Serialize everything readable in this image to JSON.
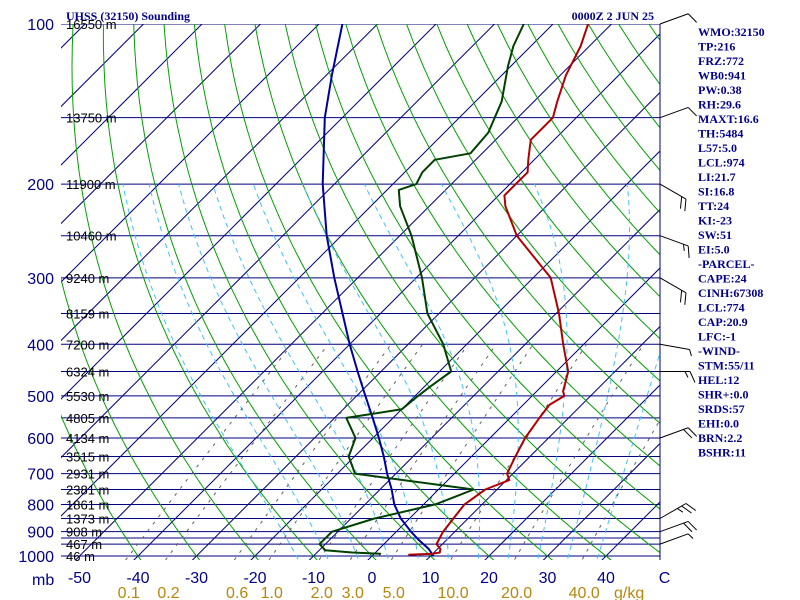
{
  "chart_data": {
    "type": "skew-t",
    "title_left": "UHSS (32150) Sounding",
    "title_right": "0000Z  2 JUN 25",
    "pressure_unit": "mb",
    "mixing_ratio_unit": "g/kg",
    "pressure_levels": [
      100,
      200,
      300,
      400,
      500,
      600,
      700,
      800,
      900,
      1000
    ],
    "pressure_ticks": [
      100,
      150,
      200,
      250,
      300,
      350,
      400,
      450,
      500,
      550,
      600,
      650,
      700,
      750,
      800,
      850,
      900,
      925,
      950,
      1000
    ],
    "temperature_ticks": [
      -50,
      -40,
      -30,
      -20,
      -10,
      0,
      10,
      20,
      30,
      40,
      50
    ],
    "temperature_tick_labels": [
      "-50",
      "-40",
      "-30",
      "-20",
      "-10",
      "0",
      "10",
      "20",
      "30",
      "40",
      "C"
    ],
    "mixing_ratio_labels": [
      {
        "label": "0.1",
        "value": 0.1
      },
      {
        "label": "0.2",
        "value": 0.2
      },
      {
        "label": "0.6",
        "value": 0.6
      },
      {
        "label": "1.0",
        "value": 1.0
      },
      {
        "label": "2.0",
        "value": 2.0
      },
      {
        "label": "3.0",
        "value": 3.0
      },
      {
        "label": "5.0",
        "value": 5.0
      },
      {
        "label": "10.0",
        "value": 10.0
      },
      {
        "label": "20.0",
        "value": 20.0
      },
      {
        "label": "40.0",
        "value": 40.0
      }
    ],
    "heights": [
      {
        "p": 100,
        "label": "16550 m"
      },
      {
        "p": 150,
        "label": "13750 m"
      },
      {
        "p": 200,
        "label": "11900 m"
      },
      {
        "p": 250,
        "label": "10460 m"
      },
      {
        "p": 300,
        "label": "9240 m"
      },
      {
        "p": 350,
        "label": "8159 m"
      },
      {
        "p": 400,
        "label": "7200 m"
      },
      {
        "p": 450,
        "label": "6324 m"
      },
      {
        "p": 500,
        "label": "5530 m"
      },
      {
        "p": 550,
        "label": "4805 m"
      },
      {
        "p": 600,
        "label": "4134 m"
      },
      {
        "p": 650,
        "label": "3515 m"
      },
      {
        "p": 700,
        "label": "2931 m"
      },
      {
        "p": 750,
        "label": "2381 m"
      },
      {
        "p": 800,
        "label": "1861 m"
      },
      {
        "p": 850,
        "label": "1373 m"
      },
      {
        "p": 900,
        "label": "908 m"
      },
      {
        "p": 950,
        "label": "467 m"
      },
      {
        "p": 1000,
        "label": "46 m"
      }
    ],
    "temperature_profile": [
      [
        995,
        6.0
      ],
      [
        990,
        10.0
      ],
      [
        985,
        11.0
      ],
      [
        970,
        10.5
      ],
      [
        950,
        9.0
      ],
      [
        900,
        8.0
      ],
      [
        850,
        7.5
      ],
      [
        800,
        7.0
      ],
      [
        750,
        8.0
      ],
      [
        720,
        10.5
      ],
      [
        700,
        9.0
      ],
      [
        650,
        7.5
      ],
      [
        600,
        6.0
      ],
      [
        550,
        5.0
      ],
      [
        520,
        4.5
      ],
      [
        500,
        5.5
      ],
      [
        490,
        4.5
      ],
      [
        450,
        2.0
      ],
      [
        400,
        -3.5
      ],
      [
        350,
        -9.5
      ],
      [
        300,
        -17.0
      ],
      [
        250,
        -30.0
      ],
      [
        220,
        -37.0
      ],
      [
        210,
        -39.0
      ],
      [
        200,
        -39.0
      ],
      [
        190,
        -39.0
      ],
      [
        180,
        -41.0
      ],
      [
        170,
        -43.0
      ],
      [
        165,
        -44.0
      ],
      [
        150,
        -44.0
      ],
      [
        140,
        -46.0
      ],
      [
        125,
        -49.0
      ],
      [
        110,
        -51.5
      ],
      [
        100,
        -54.0
      ]
    ],
    "dewpoint_profile": [
      [
        995,
        1.0
      ],
      [
        990,
        1.0
      ],
      [
        985,
        -4.0
      ],
      [
        975,
        -9.0
      ],
      [
        950,
        -11.0
      ],
      [
        900,
        -11.0
      ],
      [
        850,
        -6.0
      ],
      [
        800,
        2.0
      ],
      [
        775,
        4.0
      ],
      [
        750,
        6.0
      ],
      [
        700,
        -17.0
      ],
      [
        650,
        -21.0
      ],
      [
        600,
        -23.0
      ],
      [
        550,
        -28.0
      ],
      [
        530,
        -20.0
      ],
      [
        500,
        -19.5
      ],
      [
        480,
        -19.0
      ],
      [
        450,
        -18.0
      ],
      [
        400,
        -24.0
      ],
      [
        350,
        -32.0
      ],
      [
        300,
        -39.0
      ],
      [
        250,
        -48.0
      ],
      [
        220,
        -55.0
      ],
      [
        205,
        -58.0
      ],
      [
        200,
        -56.0
      ],
      [
        190,
        -57.0
      ],
      [
        180,
        -57.0
      ],
      [
        175,
        -52.0
      ],
      [
        160,
        -52.5
      ],
      [
        140,
        -55.5
      ],
      [
        120,
        -60.5
      ],
      [
        110,
        -63.0
      ],
      [
        100,
        -65.0
      ]
    ],
    "parcel_profile": [
      [
        1000,
        10.5
      ],
      [
        970,
        8.5
      ],
      [
        930,
        5.0
      ],
      [
        900,
        2.5
      ],
      [
        850,
        -1.5
      ],
      [
        800,
        -5.0
      ],
      [
        750,
        -8.0
      ],
      [
        700,
        -11.5
      ],
      [
        650,
        -15.0
      ],
      [
        600,
        -19.0
      ],
      [
        550,
        -23.5
      ],
      [
        500,
        -28.5
      ],
      [
        450,
        -34.0
      ],
      [
        400,
        -40.0
      ],
      [
        350,
        -46.5
      ],
      [
        300,
        -54.0
      ],
      [
        250,
        -62.5
      ],
      [
        200,
        -72.0
      ],
      [
        150,
        -83.0
      ],
      [
        125,
        -89.0
      ],
      [
        100,
        -96.0
      ]
    ],
    "wind_barbs": [
      {
        "p": 100,
        "dir": 250,
        "kt": 10
      },
      {
        "p": 150,
        "dir": 250,
        "kt": 10
      },
      {
        "p": 200,
        "dir": 300,
        "kt": 20
      },
      {
        "p": 250,
        "dir": 290,
        "kt": 15
      },
      {
        "p": 300,
        "dir": 300,
        "kt": 20
      },
      {
        "p": 400,
        "dir": 280,
        "kt": 5
      },
      {
        "p": 450,
        "dir": 270,
        "kt": 15
      },
      {
        "p": 600,
        "dir": 250,
        "kt": 20
      },
      {
        "p": 850,
        "dir": 240,
        "kt": 25
      },
      {
        "p": 900,
        "dir": 250,
        "kt": 20
      },
      {
        "p": 950,
        "dir": 250,
        "kt": 5
      }
    ],
    "indices": [
      "WMO:32150",
      "TP:216",
      "FRZ:772",
      "WB0:941",
      "PW:0.38",
      "RH:29.6",
      "MAXT:16.6",
      "TH:5484",
      "L57:5.0",
      "LCL:974",
      "LI:21.7",
      "SI:16.8",
      "TT:24",
      "KI:-23",
      "SW:51",
      "EI:5.0",
      "-PARCEL-",
      "CAPE:24",
      "CINH:67308",
      "LCL:774",
      "CAP:20.9",
      "LFC:-1",
      "-WIND-",
      "STM:55/11",
      "HEL:12",
      "SHR+:0.0",
      "SRDS:57",
      "EHI:0.0",
      "BRN:2.2",
      "BSHR:11"
    ],
    "colors": {
      "temperature": "#b00000",
      "dewpoint": "#004000",
      "parcel": "#0000a0",
      "isobar": "#000080",
      "isotherm": "#000080",
      "dry_adiabat": "#00a000",
      "moist_adiabat": "#40c0ff",
      "mixing_ratio": "#606060",
      "text": "#00008b",
      "mixing_label": "#b8860b"
    }
  }
}
